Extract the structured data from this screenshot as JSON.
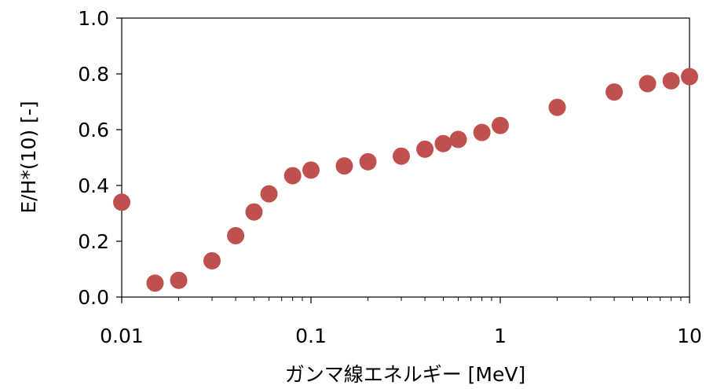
{
  "chart_data": {
    "type": "scatter",
    "title": "",
    "xlabel": "ガンマ線エネルギー [MeV]",
    "ylabel": "E/H*(10) [-]",
    "x_scale": "log",
    "xlim": [
      0.01,
      10
    ],
    "ylim": [
      0.0,
      1.0
    ],
    "x_ticks": [
      0.01,
      0.1,
      1,
      10
    ],
    "x_tick_labels": [
      "0.01",
      "0.1",
      "1",
      "10"
    ],
    "y_ticks": [
      0.0,
      0.2,
      0.4,
      0.6,
      0.8,
      1.0
    ],
    "y_tick_labels": [
      "0.0",
      "0.2",
      "0.4",
      "0.6",
      "0.8",
      "1.0"
    ],
    "grid": false,
    "marker_color": "#c0504d",
    "series": [
      {
        "x": [
          0.01,
          0.015,
          0.02,
          0.03,
          0.04,
          0.05,
          0.06,
          0.08,
          0.1,
          0.15,
          0.2,
          0.3,
          0.4,
          0.5,
          0.6,
          0.8,
          1,
          2,
          4,
          6,
          8,
          10
        ],
        "y": [
          0.34,
          0.05,
          0.06,
          0.13,
          0.22,
          0.305,
          0.37,
          0.435,
          0.455,
          0.47,
          0.485,
          0.505,
          0.53,
          0.55,
          0.565,
          0.59,
          0.615,
          0.68,
          0.735,
          0.765,
          0.775,
          0.79
        ]
      }
    ]
  }
}
